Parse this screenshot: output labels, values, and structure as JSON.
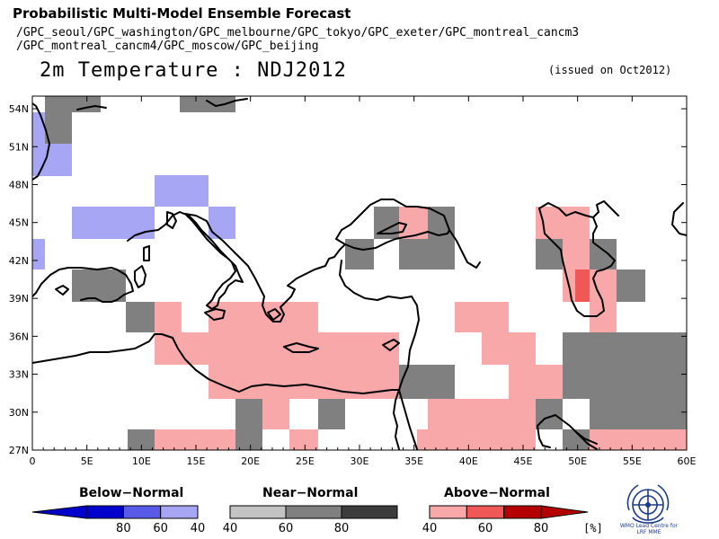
{
  "header": {
    "title": "Probabilistic Multi-Model Ensemble Forecast",
    "models_line1": "/GPC_seoul/GPC_washington/GPC_melbourne/GPC_tokyo/GPC_exeter/GPC_montreal_cancm3",
    "models_line2": "/GPC_montreal_cancm4/GPC_moscow/GPC_beijing",
    "map_title": "2m Temperature : NDJ2012",
    "issued": "(issued on Oct2012)"
  },
  "map": {
    "lon_range": [
      0,
      60
    ],
    "lat_range": [
      27,
      55
    ],
    "lon_ticks": [
      "0",
      "5E",
      "10E",
      "15E",
      "20E",
      "25E",
      "30E",
      "35E",
      "40E",
      "45E",
      "50E",
      "55E",
      "60E"
    ],
    "lat_ticks": [
      "27N",
      "30N",
      "33N",
      "36N",
      "39N",
      "42N",
      "45N",
      "48N",
      "51N",
      "54N"
    ],
    "grid_resolution_deg": 2.5
  },
  "legend": {
    "below": {
      "title": "Below−Normal",
      "labels": [
        "80",
        "60",
        "40"
      ],
      "colors": [
        "#0000cc",
        "#5a5ae8",
        "#a6a6f4"
      ]
    },
    "near": {
      "title": "Near−Normal",
      "labels": [
        "40",
        "60",
        "80"
      ],
      "colors": [
        "#c3c3c3",
        "#808080",
        "#3c3c3c"
      ]
    },
    "above": {
      "title": "Above−Normal",
      "labels": [
        "40",
        "60",
        "80"
      ],
      "colors": [
        "#f8a8a8",
        "#f05858",
        "#b40000"
      ]
    },
    "unit": "[%]"
  },
  "logo": {
    "caption": "WMO Lead Centre for LRF MME"
  }
}
